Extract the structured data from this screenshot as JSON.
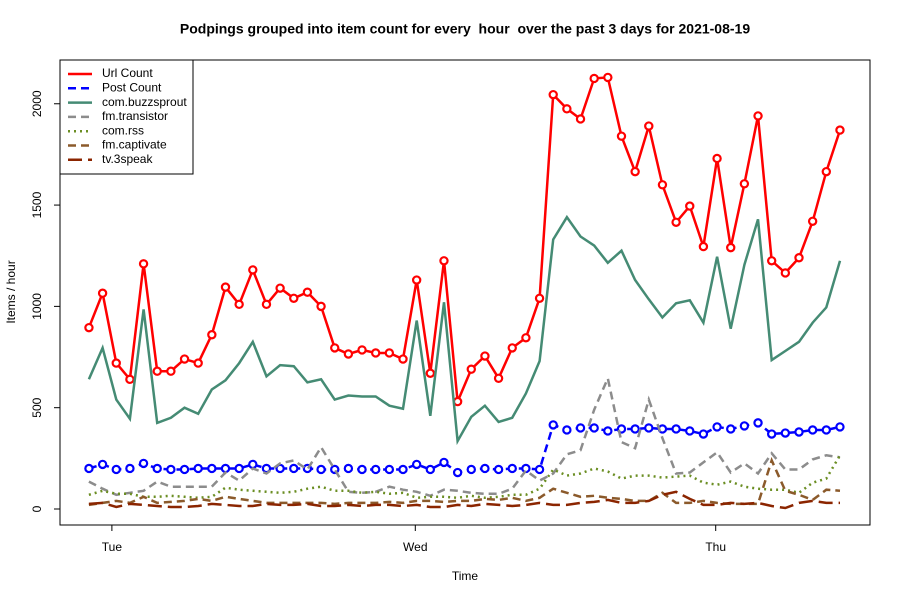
{
  "chart_data": {
    "type": "line",
    "title": "Podpings grouped into item count for every  hour  over the past 3 days for 2021-08-19",
    "x_label": "Time",
    "y_label": "Items / hour",
    "x": [
      0,
      1,
      2,
      3,
      4,
      5,
      6,
      7,
      8,
      9,
      10,
      11,
      12,
      13,
      14,
      15,
      16,
      17,
      18,
      19,
      20,
      21,
      22,
      23,
      24,
      25,
      26,
      27,
      28,
      29,
      30,
      31,
      32,
      33,
      34,
      35,
      36,
      37,
      38,
      39,
      40,
      41,
      42,
      43,
      44,
      45,
      46,
      47,
      48,
      49,
      50,
      51,
      52,
      53,
      54,
      55
    ],
    "xlim": [
      -2.12,
      57.2
    ],
    "xticks": [
      {
        "value": 1.68,
        "label": "Tue"
      },
      {
        "value": 23.9,
        "label": "Wed"
      },
      {
        "value": 45.9,
        "label": "Thu"
      }
    ],
    "ylim": [
      -79,
      2216
    ],
    "yticks": [
      0,
      500,
      1000,
      1500,
      2000
    ],
    "legend": "top-left",
    "series": [
      {
        "name": "Url Count",
        "color": "#ff0000",
        "dash": "solid",
        "markers": true,
        "values": [
          895,
          1065,
          720,
          640,
          1210,
          680,
          680,
          740,
          720,
          860,
          1095,
          1010,
          1180,
          1010,
          1090,
          1040,
          1070,
          1000,
          795,
          765,
          785,
          770,
          770,
          740,
          1130,
          670,
          1225,
          530,
          690,
          755,
          645,
          795,
          845,
          1040,
          2045,
          1975,
          1925,
          2125,
          2130,
          1840,
          1665,
          1890,
          1600,
          1415,
          1495,
          1295,
          1730,
          1290,
          1605,
          1940,
          1225,
          1165,
          1240,
          1420,
          1665,
          1870
        ]
      },
      {
        "name": "Post Count",
        "color": "#0000ff",
        "dash": "dashed",
        "markers": true,
        "values": [
          200,
          220,
          195,
          200,
          225,
          200,
          195,
          195,
          200,
          200,
          200,
          200,
          220,
          200,
          200,
          200,
          200,
          195,
          195,
          200,
          195,
          195,
          195,
          195,
          220,
          195,
          230,
          180,
          195,
          200,
          195,
          200,
          200,
          195,
          415,
          390,
          400,
          400,
          385,
          395,
          395,
          400,
          395,
          395,
          385,
          370,
          405,
          395,
          410,
          425,
          370,
          375,
          380,
          390,
          390,
          405
        ]
      },
      {
        "name": "com.buzzsprout",
        "color": "#458b74",
        "dash": "solid",
        "markers": false,
        "values": [
          640,
          795,
          540,
          445,
          985,
          425,
          450,
          500,
          470,
          590,
          635,
          720,
          825,
          655,
          710,
          705,
          625,
          640,
          540,
          560,
          555,
          555,
          510,
          495,
          930,
          460,
          1020,
          335,
          455,
          510,
          430,
          450,
          570,
          730,
          1330,
          1440,
          1345,
          1300,
          1215,
          1275,
          1130,
          1035,
          945,
          1015,
          1030,
          920,
          1245,
          890,
          1205,
          1430,
          735,
          780,
          825,
          920,
          995,
          1225
        ]
      },
      {
        "name": "fm.transistor",
        "color": "#8c8c8c",
        "dash": "dashed",
        "markers": false,
        "values": [
          135,
          100,
          70,
          80,
          90,
          135,
          110,
          110,
          110,
          110,
          180,
          140,
          200,
          175,
          225,
          240,
          195,
          305,
          195,
          85,
          80,
          85,
          110,
          95,
          85,
          65,
          95,
          90,
          80,
          75,
          75,
          100,
          190,
          140,
          175,
          270,
          290,
          490,
          645,
          330,
          300,
          540,
          350,
          175,
          180,
          230,
          280,
          180,
          225,
          175,
          275,
          195,
          195,
          245,
          265,
          255
        ]
      },
      {
        "name": "com.rss",
        "color": "#6b8e23",
        "dash": "dotted",
        "markers": false,
        "values": [
          70,
          90,
          75,
          75,
          60,
          60,
          65,
          60,
          55,
          60,
          105,
          95,
          90,
          85,
          80,
          85,
          100,
          110,
          90,
          90,
          80,
          85,
          75,
          80,
          55,
          60,
          60,
          55,
          65,
          55,
          60,
          70,
          70,
          100,
          195,
          165,
          175,
          200,
          185,
          150,
          165,
          165,
          155,
          160,
          165,
          130,
          120,
          135,
          110,
          100,
          95,
          95,
          80,
          130,
          150,
          265
        ]
      },
      {
        "name": "fm.captivate",
        "color": "#8b5a2b",
        "dash": "dashed",
        "markers": false,
        "values": [
          20,
          30,
          40,
          30,
          60,
          30,
          35,
          40,
          50,
          40,
          60,
          50,
          40,
          30,
          30,
          30,
          30,
          30,
          25,
          30,
          30,
          30,
          35,
          30,
          40,
          40,
          35,
          40,
          40,
          50,
          45,
          55,
          40,
          55,
          100,
          80,
          60,
          65,
          55,
          50,
          40,
          40,
          80,
          30,
          30,
          40,
          30,
          25,
          25,
          25,
          240,
          90,
          70,
          45,
          95,
          90
        ]
      },
      {
        "name": "tv.3speak",
        "color": "#8b2500",
        "dash": "longdash",
        "markers": false,
        "values": [
          25,
          30,
          10,
          25,
          20,
          15,
          10,
          10,
          15,
          25,
          20,
          15,
          15,
          25,
          20,
          20,
          25,
          15,
          15,
          20,
          15,
          20,
          20,
          15,
          20,
          10,
          10,
          20,
          15,
          25,
          20,
          15,
          20,
          30,
          20,
          20,
          30,
          35,
          45,
          30,
          30,
          40,
          70,
          85,
          50,
          20,
          20,
          30,
          25,
          30,
          15,
          5,
          30,
          40,
          30,
          30
        ]
      }
    ]
  }
}
